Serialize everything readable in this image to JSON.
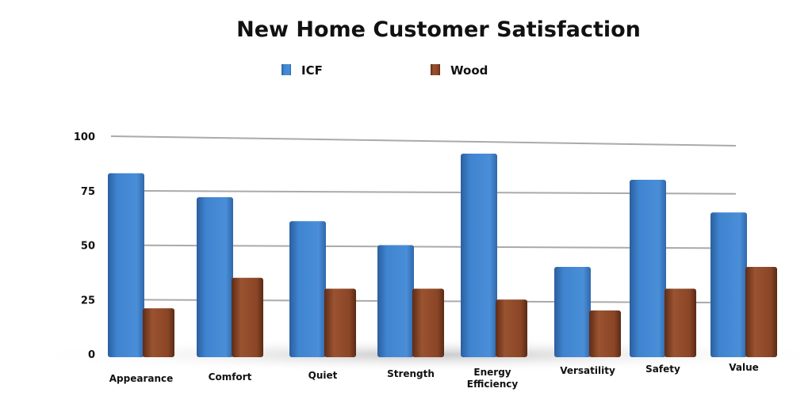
{
  "chart_data": {
    "type": "bar",
    "title": "New Home Customer Satisfaction",
    "categories": [
      "Appearance",
      "Comfort",
      "Quiet",
      "Strength",
      "Energy Efficiency",
      "Versatility",
      "Safety",
      "Value"
    ],
    "series": [
      {
        "name": "ICF",
        "color": "#3a7cc8",
        "values": [
          83,
          72,
          61,
          50,
          92,
          40,
          80,
          65
        ]
      },
      {
        "name": "Wood",
        "color": "#8a4526",
        "values": [
          21,
          35,
          30,
          30,
          25,
          20,
          30,
          40
        ]
      }
    ],
    "yticks": [
      0,
      25,
      50,
      75,
      100
    ],
    "ylim": [
      0,
      100
    ],
    "xlabel": "",
    "ylabel": "",
    "grid": true,
    "legend": "top"
  }
}
